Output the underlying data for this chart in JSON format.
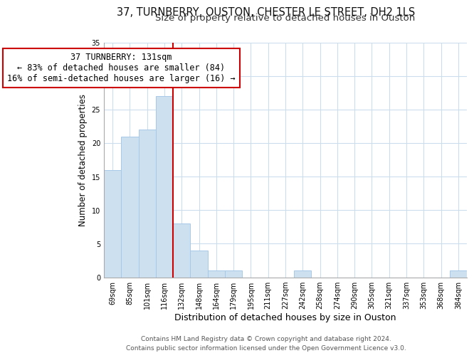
{
  "title1": "37, TURNBERRY, OUSTON, CHESTER LE STREET, DH2 1LS",
  "title2": "Size of property relative to detached houses in Ouston",
  "xlabel": "Distribution of detached houses by size in Ouston",
  "ylabel": "Number of detached properties",
  "bar_labels": [
    "69sqm",
    "85sqm",
    "101sqm",
    "116sqm",
    "132sqm",
    "148sqm",
    "164sqm",
    "179sqm",
    "195sqm",
    "211sqm",
    "227sqm",
    "242sqm",
    "258sqm",
    "274sqm",
    "290sqm",
    "305sqm",
    "321sqm",
    "337sqm",
    "353sqm",
    "368sqm",
    "384sqm"
  ],
  "bar_values": [
    16,
    21,
    22,
    27,
    8,
    4,
    1,
    1,
    0,
    0,
    0,
    1,
    0,
    0,
    0,
    0,
    0,
    0,
    0,
    0,
    1
  ],
  "bar_color": "#cce0f0",
  "bar_edge_color": "#a8c8e8",
  "vline_color": "#cc0000",
  "annotation_text": "37 TURNBERRY: 131sqm\n← 83% of detached houses are smaller (84)\n16% of semi-detached houses are larger (16) →",
  "annotation_box_color": "white",
  "annotation_box_edge_color": "#cc0000",
  "ylim": [
    0,
    35
  ],
  "yticks": [
    0,
    5,
    10,
    15,
    20,
    25,
    30,
    35
  ],
  "footer1": "Contains HM Land Registry data © Crown copyright and database right 2024.",
  "footer2": "Contains public sector information licensed under the Open Government Licence v3.0.",
  "bg_color": "#ffffff",
  "grid_color": "#ccdded",
  "title1_fontsize": 10.5,
  "title2_fontsize": 9.5,
  "annotation_fontsize": 8.5,
  "xlabel_fontsize": 9,
  "ylabel_fontsize": 8.5,
  "footer_fontsize": 6.5,
  "tick_fontsize": 7
}
